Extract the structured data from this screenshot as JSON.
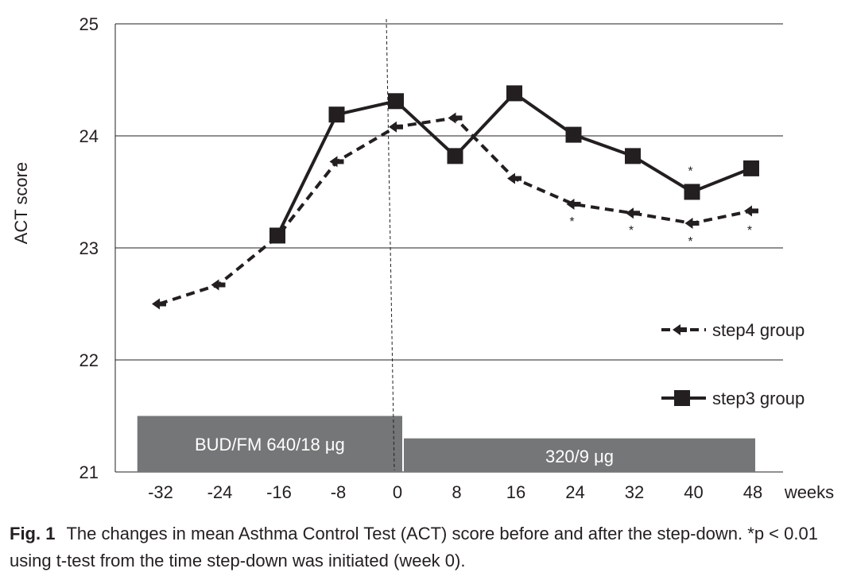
{
  "chart_data": {
    "type": "line",
    "ylabel": "ACT score",
    "xlabel": "weeks",
    "ylim": [
      21,
      25
    ],
    "yticks": [
      "21",
      "22",
      "23",
      "24",
      "25"
    ],
    "x": [
      "-32",
      "-24",
      "-16",
      "-8",
      "0",
      "8",
      "16",
      "24",
      "32",
      "40",
      "48"
    ],
    "grid": "horizontal",
    "legend_position": "right",
    "series": [
      {
        "name": "step4 group",
        "style": "dashed",
        "marker": "arrow",
        "color": "#231f20",
        "points": [
          [
            -32,
            22.5
          ],
          [
            -24,
            22.67
          ],
          [
            -16,
            23.1
          ],
          [
            -8,
            23.77
          ],
          [
            0,
            24.08
          ],
          [
            8,
            24.16
          ],
          [
            16,
            23.62
          ],
          [
            24,
            23.39
          ],
          [
            32,
            23.31
          ],
          [
            40,
            23.22
          ],
          [
            48,
            23.33
          ]
        ]
      },
      {
        "name": "step3 group",
        "style": "solid",
        "marker": "square",
        "color": "#231f20",
        "points": [
          [
            -16,
            23.11
          ],
          [
            -8,
            24.19
          ],
          [
            0,
            24.31
          ],
          [
            8,
            23.82
          ],
          [
            16,
            24.38
          ],
          [
            24,
            24.01
          ],
          [
            32,
            23.82
          ],
          [
            40,
            23.5
          ],
          [
            48,
            23.71
          ]
        ]
      }
    ],
    "annotations": [
      {
        "text": "*",
        "x": 24,
        "y": 23.2
      },
      {
        "text": "*",
        "x": 32,
        "y": 23.12
      },
      {
        "text": "*",
        "x": 40,
        "y": 23.02
      },
      {
        "text": "*",
        "x": 48,
        "y": 23.12
      },
      {
        "text": "*",
        "x": 40,
        "y": 23.65
      }
    ],
    "treatment_bars": [
      {
        "label": "BUD/FM 640/18 μg",
        "x_start": -36,
        "x_end": 0,
        "y_top": 21.5
      },
      {
        "label": "320/9 μg",
        "x_start": 0,
        "x_end": 48,
        "y_top": 21.3
      }
    ],
    "bar_color": "#757677",
    "reference_line_x": 0
  },
  "caption": {
    "label": "Fig. 1",
    "text": "The changes in mean Asthma Control Test (ACT) score before and after the step-down. *p < 0.01 using t-test from the time step-down was initiated (week 0)."
  }
}
